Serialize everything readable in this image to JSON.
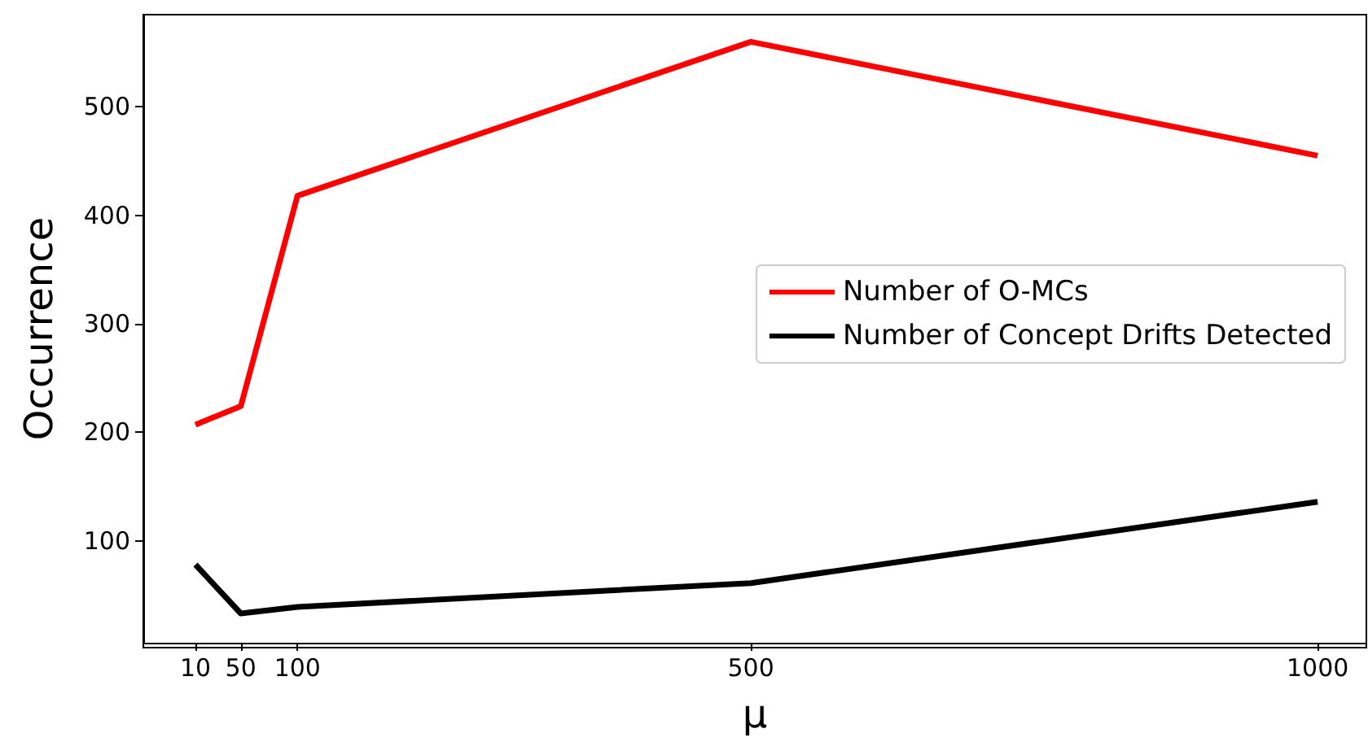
{
  "chart_data": {
    "type": "line",
    "xlabel": "μ",
    "ylabel": "Occurrence",
    "x": [
      10,
      50,
      100,
      500,
      1000
    ],
    "series": [
      {
        "name": "Number of O-MCs",
        "color": "#ff0000",
        "values": [
          207,
          224,
          418,
          560,
          455
        ]
      },
      {
        "name": "Number of Concept Drifts Detected",
        "color": "#000000",
        "values": [
          78,
          33,
          39,
          61,
          136
        ]
      }
    ],
    "xlim": [
      -36,
      1043
    ],
    "xticks": [
      10,
      50,
      100,
      500,
      1000
    ],
    "ylim": [
      6,
      585
    ],
    "yticks": [
      100,
      200,
      300,
      400,
      500
    ],
    "grid": false,
    "legend": "right",
    "marker": "none",
    "line_style": "solid"
  }
}
